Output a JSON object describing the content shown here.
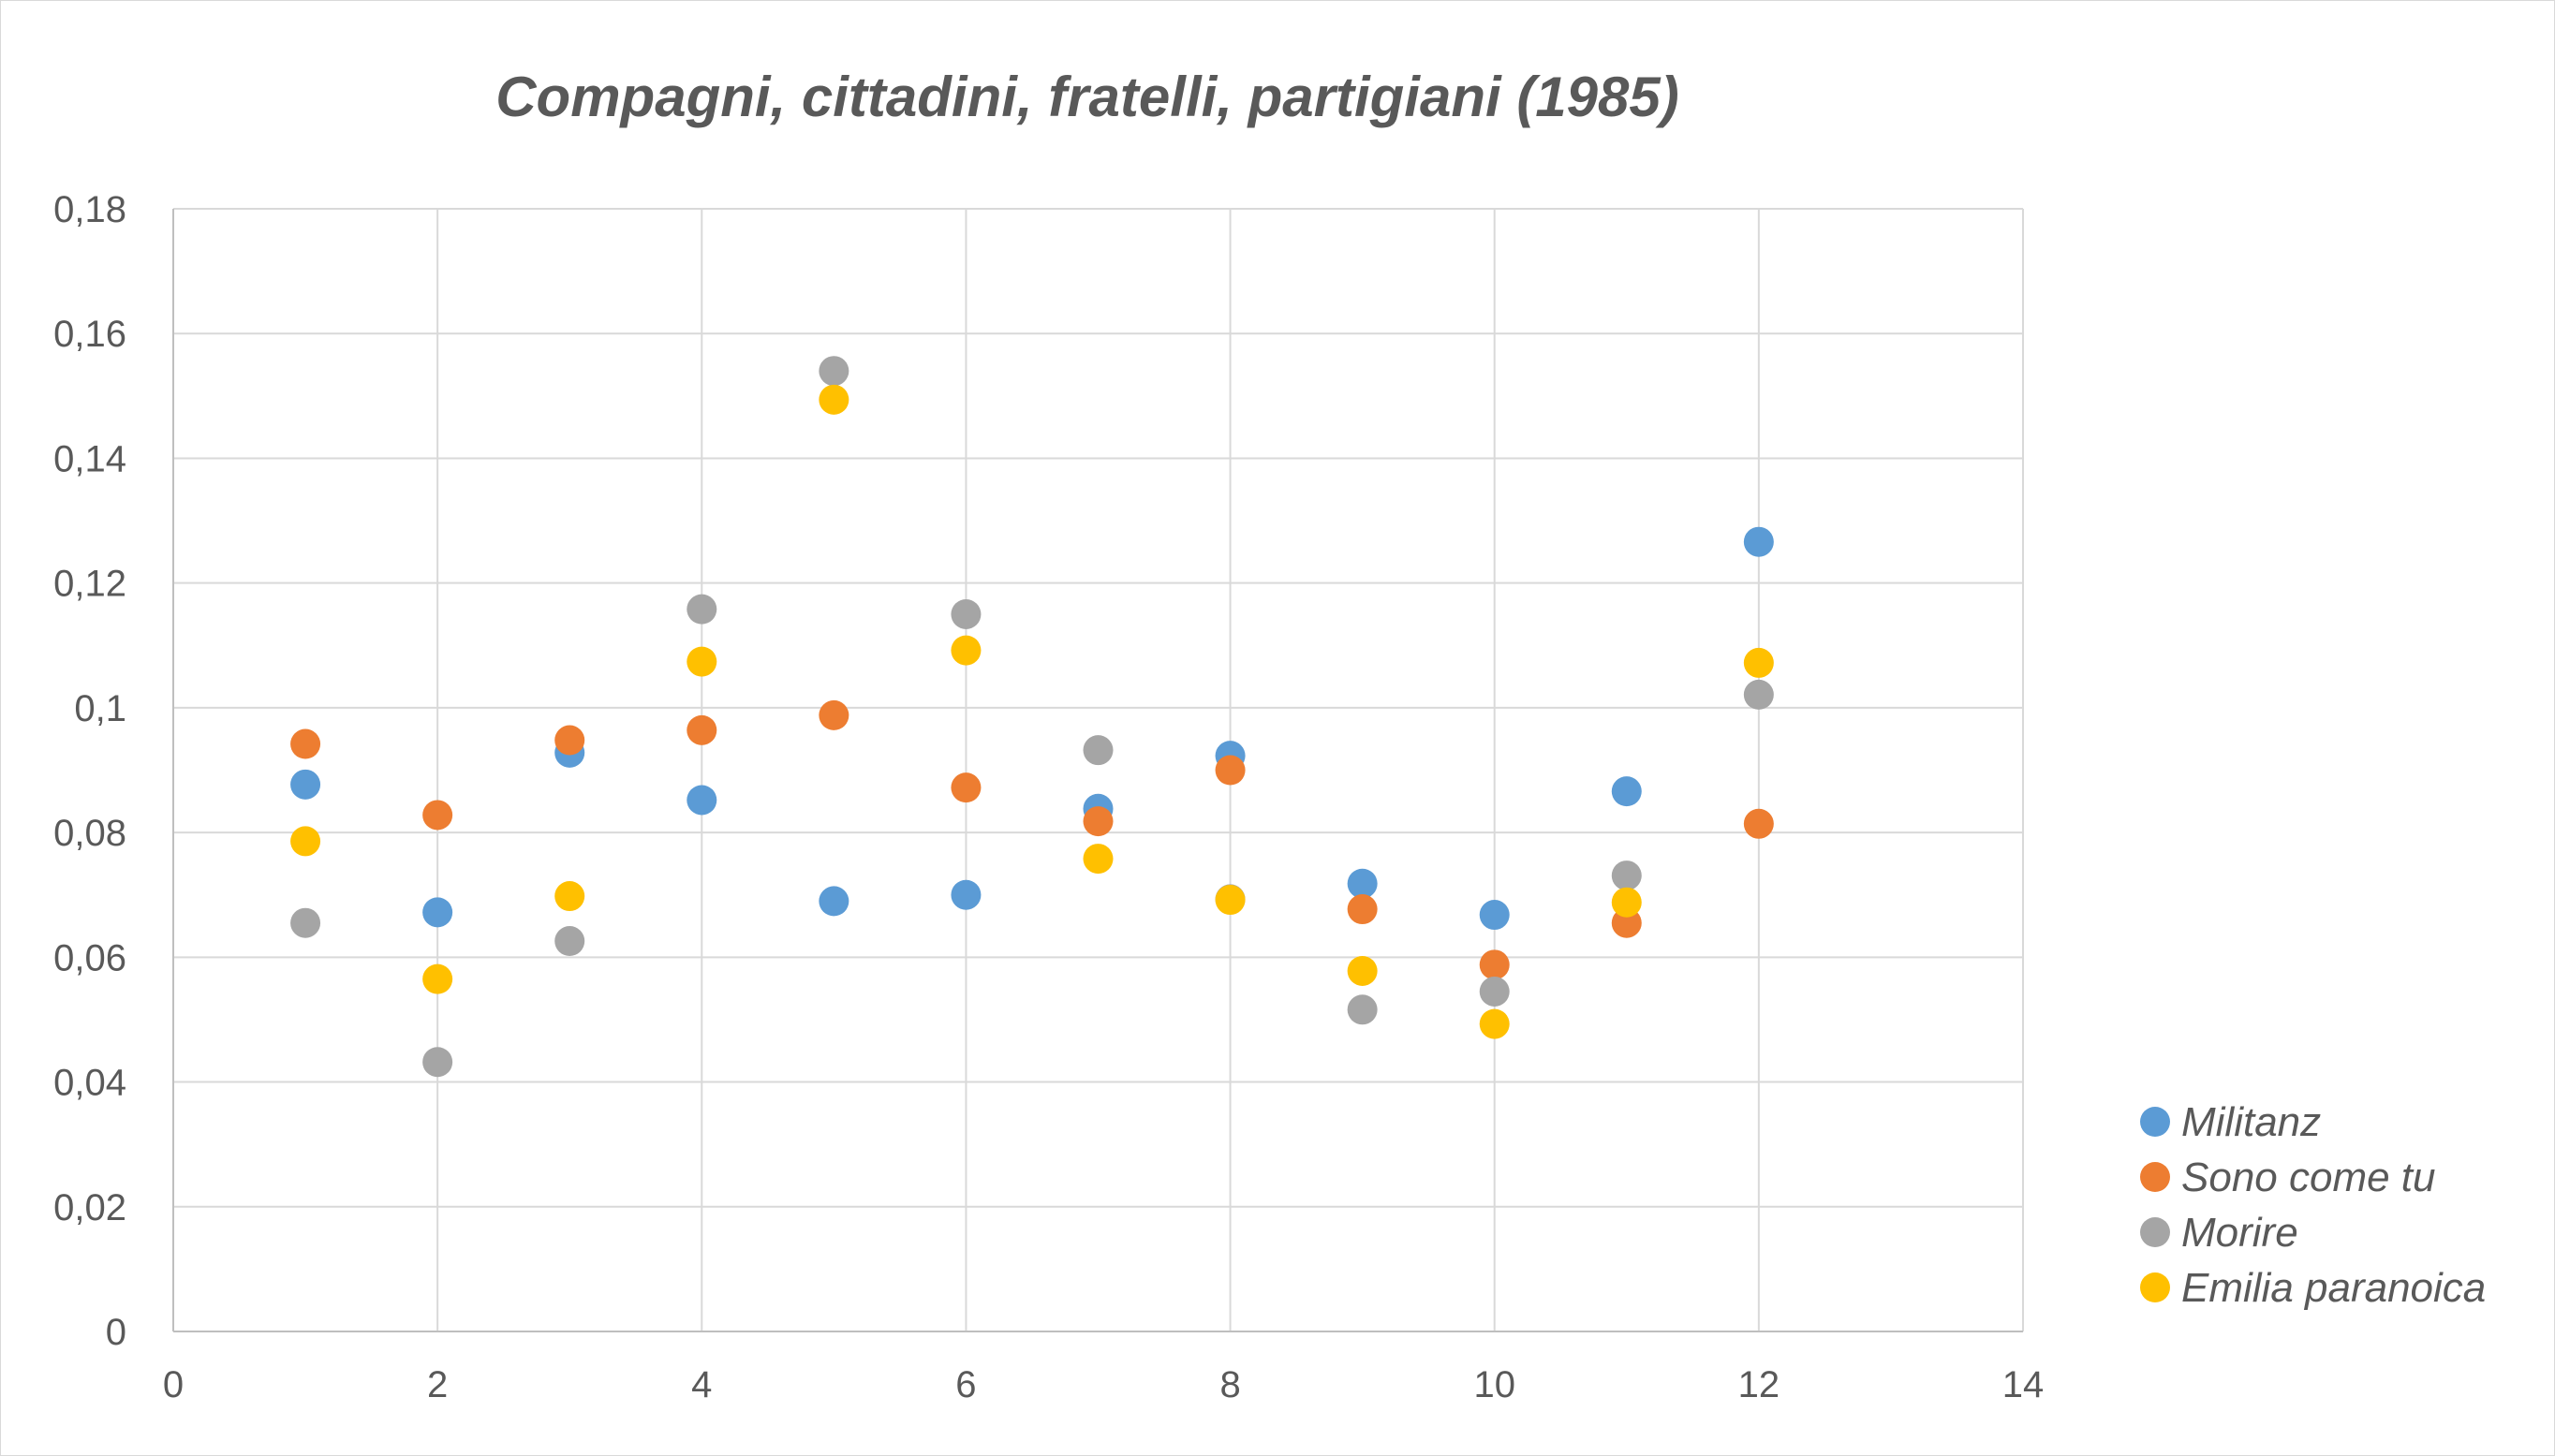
{
  "chart_data": {
    "type": "scatter",
    "title": "Compagni, cittadini, fratelli, partigiani (1985)",
    "xlabel": "",
    "ylabel": "",
    "xlim": [
      0,
      14
    ],
    "ylim": [
      0,
      0.18
    ],
    "x_ticks": [
      0,
      2,
      4,
      6,
      8,
      10,
      12,
      14
    ],
    "x_tick_labels": [
      "0",
      "2",
      "4",
      "6",
      "8",
      "10",
      "12",
      "14"
    ],
    "y_ticks": [
      0,
      0.02,
      0.04,
      0.06,
      0.08,
      0.1,
      0.12,
      0.14,
      0.16,
      0.18
    ],
    "y_tick_labels": [
      "0",
      "0,02",
      "0,04",
      "0,06",
      "0,08",
      "0,1",
      "0,12",
      "0,14",
      "0,16",
      "0,18"
    ],
    "grid": true,
    "legend_position": "bottom-right",
    "series": [
      {
        "name": "Militanz",
        "color": "#5B9BD5",
        "x": [
          1,
          2,
          3,
          4,
          5,
          6,
          7,
          8,
          9,
          10,
          11,
          12
        ],
        "y": [
          0.0877,
          0.0672,
          0.0928,
          0.0852,
          0.069,
          0.07,
          0.0838,
          0.0923,
          0.0718,
          0.0668,
          0.0866,
          0.1266
        ]
      },
      {
        "name": "Sono come tu",
        "color": "#ED7D31",
        "x": [
          1,
          2,
          3,
          4,
          5,
          6,
          7,
          8,
          9,
          10,
          11,
          12
        ],
        "y": [
          0.0942,
          0.0828,
          0.0948,
          0.0964,
          0.0988,
          0.0872,
          0.0818,
          0.09,
          0.0677,
          0.0588,
          0.0655,
          0.0814
        ]
      },
      {
        "name": "Morire",
        "color": "#A5A5A5",
        "x": [
          1,
          2,
          3,
          4,
          5,
          6,
          7,
          8,
          9,
          10,
          11,
          12
        ],
        "y": [
          0.0655,
          0.0432,
          0.0626,
          0.1158,
          0.154,
          0.115,
          0.0932,
          0.0693,
          0.0516,
          0.0545,
          0.0731,
          0.1021
        ]
      },
      {
        "name": "Emilia paranoica",
        "color": "#FFC000",
        "x": [
          1,
          2,
          3,
          4,
          5,
          6,
          7,
          8,
          9,
          10,
          11,
          12
        ],
        "y": [
          0.0786,
          0.0565,
          0.0698,
          0.1074,
          0.1494,
          0.1092,
          0.0758,
          0.0692,
          0.0578,
          0.0493,
          0.0688,
          0.1072
        ]
      }
    ]
  }
}
